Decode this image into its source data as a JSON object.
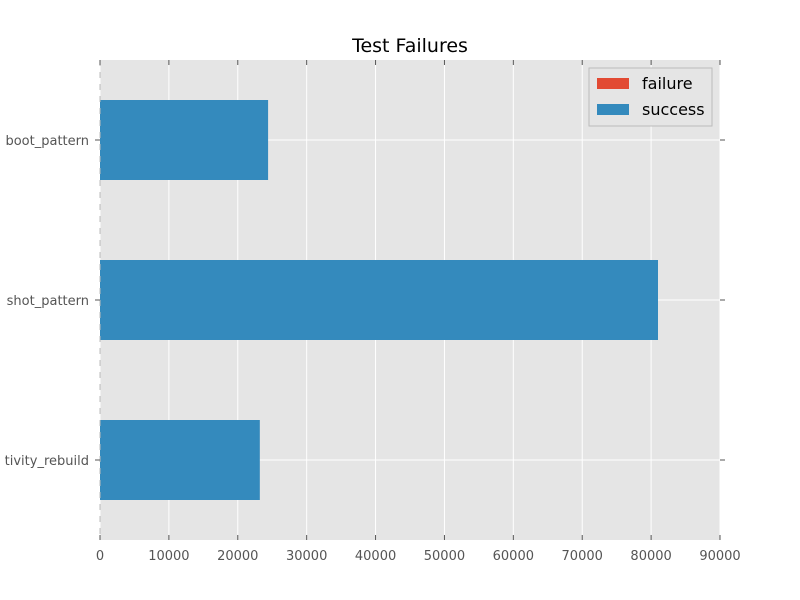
{
  "chart_data": {
    "type": "bar",
    "orientation": "horizontal",
    "stacked": true,
    "title": "Test Failures",
    "xlabel": "",
    "ylabel": "",
    "categories": [
      "activity_rebuild",
      "screenshot_pattern",
      "reboot_pattern"
    ],
    "category_labels_visible": [
      "tivity_rebuild",
      "shot_pattern",
      "boot_pattern"
    ],
    "series": [
      {
        "name": "failure",
        "values": [
          0,
          0,
          0
        ],
        "color": "#e24a33"
      },
      {
        "name": "success",
        "values": [
          23200,
          81000,
          24400
        ],
        "color": "#348abd"
      }
    ],
    "xlim": [
      0,
      90000
    ],
    "xticks": [
      0,
      10000,
      20000,
      30000,
      40000,
      50000,
      60000,
      70000,
      80000,
      90000
    ],
    "xtick_labels": [
      "0",
      "10000",
      "20000",
      "30000",
      "40000",
      "50000",
      "60000",
      "70000",
      "80000",
      "90000"
    ],
    "grid": true,
    "legend_position": "top-right",
    "background_color": "#e5e5e5",
    "grid_color": "#ffffff"
  }
}
